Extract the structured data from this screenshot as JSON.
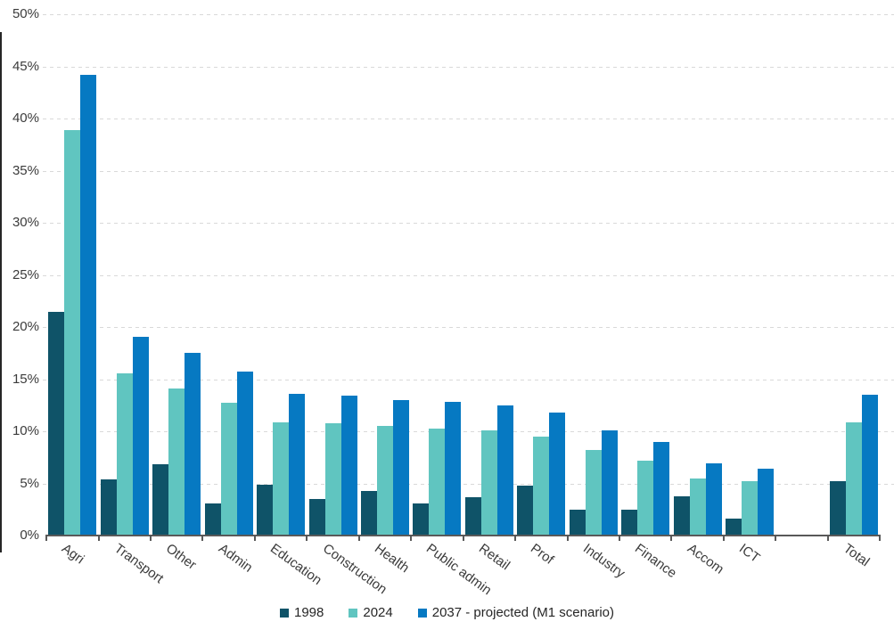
{
  "chart_data": {
    "type": "bar",
    "title": "",
    "xlabel": "",
    "ylabel": "",
    "categories": [
      "Agri",
      "Transport",
      "Other",
      "Admin",
      "Education",
      "Construction",
      "Health",
      "Public admin",
      "Retail",
      "Prof",
      "Industry",
      "Finance",
      "Accom",
      "ICT",
      "Total"
    ],
    "series": [
      {
        "name": "1998",
        "color": "#0F5368",
        "values": [
          21.5,
          5.4,
          6.8,
          3.1,
          4.9,
          3.5,
          4.3,
          3.1,
          3.7,
          4.8,
          2.5,
          2.5,
          3.8,
          1.6,
          5.2
        ]
      },
      {
        "name": "2024",
        "color": "#60C5C0",
        "values": [
          38.9,
          15.6,
          14.1,
          12.7,
          10.9,
          10.8,
          10.5,
          10.3,
          10.1,
          9.5,
          8.2,
          7.2,
          5.5,
          5.2,
          10.9
        ]
      },
      {
        "name": "2037 - projected (M1 scenario)",
        "color": "#0679C2",
        "values": [
          44.2,
          19.1,
          17.5,
          15.7,
          13.6,
          13.4,
          13.0,
          12.8,
          12.5,
          11.8,
          10.1,
          9.0,
          6.9,
          6.4,
          13.5
        ]
      }
    ],
    "ylim": [
      0,
      50
    ],
    "ytick_step": 5,
    "ytick_labels": [
      "0%",
      "5%",
      "10%",
      "15%",
      "20%",
      "25%",
      "30%",
      "35%",
      "40%",
      "45%",
      "50%"
    ],
    "grid": "horizontal-dashed",
    "gridline_color": "#d9d9d9",
    "axis_color": "#595959",
    "text_color": "#3b3b3b",
    "legend_position": "bottom-center",
    "x_label_rotation_deg": 36,
    "total_category_separated": true
  }
}
